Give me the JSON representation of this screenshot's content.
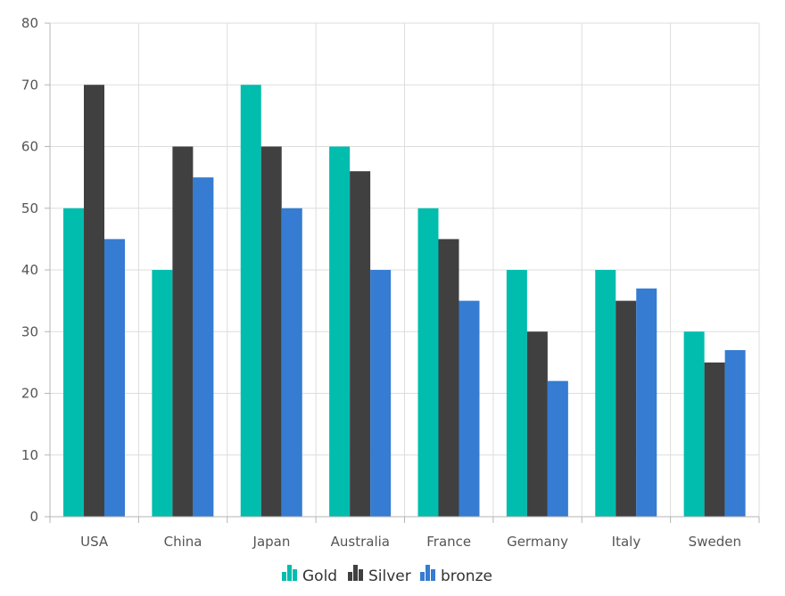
{
  "chart_data": {
    "type": "bar",
    "categories": [
      "USA",
      "China",
      "Japan",
      "Australia",
      "France",
      "Germany",
      "Italy",
      "Sweden"
    ],
    "series": [
      {
        "name": "Gold",
        "color": "#00bdae",
        "values": [
          50,
          40,
          70,
          60,
          50,
          40,
          40,
          30
        ]
      },
      {
        "name": "Silver",
        "color": "#404041",
        "values": [
          70,
          60,
          60,
          56,
          45,
          30,
          35,
          25
        ]
      },
      {
        "name": "bronze",
        "color": "#357cd2",
        "values": [
          45,
          55,
          50,
          40,
          35,
          22,
          37,
          27
        ]
      }
    ],
    "ylim": [
      0,
      80
    ],
    "yticks": [
      0,
      10,
      20,
      30,
      40,
      50,
      60,
      70,
      80
    ],
    "grid": true,
    "legend": "bottom-center",
    "legend_icon": "column-chart-icon"
  }
}
